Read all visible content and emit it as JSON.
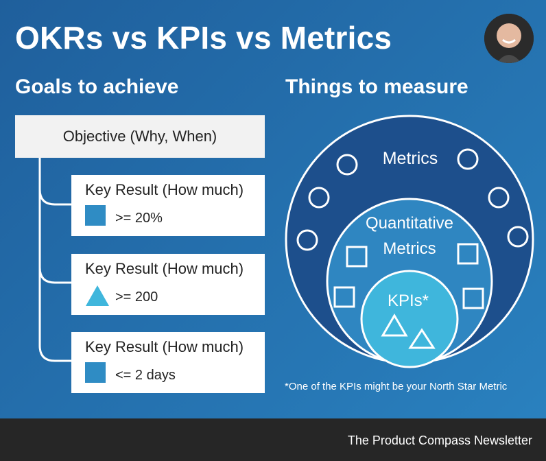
{
  "title": "OKRs vs KPIs vs Metrics",
  "left_heading": "Goals to achieve",
  "right_heading": "Things to measure",
  "objective": "Objective (Why, When)",
  "key_results": [
    {
      "title": "Key Result (How much)",
      "value": ">= 20%",
      "icon": "square-icon"
    },
    {
      "title": "Key Result (How much)",
      "value": ">= 200",
      "icon": "triangle-icon"
    },
    {
      "title": "Key Result (How much)",
      "value": "<= 2 days",
      "icon": "square-icon"
    }
  ],
  "diagram": {
    "outer_label": "Metrics",
    "middle_label_line1": "Quantitative",
    "middle_label_line2": "Metrics",
    "inner_label": "KPIs*"
  },
  "footnote": "*One of the KPIs might be your North Star Metric",
  "footer": "The Product Compass Newsletter",
  "colors": {
    "outer_circle": "#1d4f8c",
    "middle_circle": "#2f86c1",
    "inner_circle": "#3fb6dc",
    "kr_icon": "#2f8cc4",
    "footer_bg": "#262626"
  }
}
